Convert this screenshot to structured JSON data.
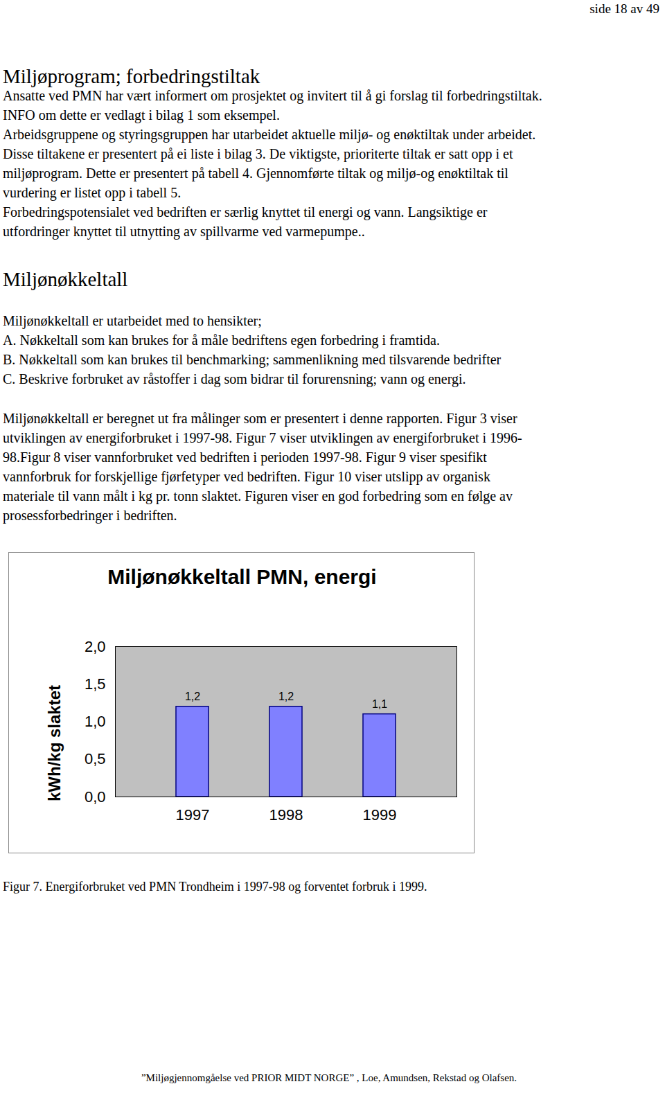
{
  "header": {
    "page": "side 18 av 49"
  },
  "sections": [
    {
      "heading": "Miljøprogram; forbedringstiltak",
      "paragraphs": [
        [
          "Ansatte ved PMN har vært informert om prosjektet og invitert til å gi forslag til forbedringstiltak.",
          "INFO om dette er vedlagt i bilag 1 som eksempel.",
          "Arbeidsgruppene og styringsgruppen har utarbeidet aktuelle miljø- og enøktiltak under arbeidet.",
          "Disse tiltakene er presentert på ei liste i bilag 3. De viktigste, prioriterte tiltak er satt opp i et",
          "miljøprogram. Dette er presentert på tabell 4. Gjennomførte tiltak og miljø-og enøktiltak til",
          "vurdering er listet opp i tabell 5.",
          "Forbedringspotensialet ved bedriften er særlig knyttet til energi og vann. Langsiktige er",
          "utfordringer knyttet til utnytting av spillvarme ved varmepumpe.."
        ]
      ]
    },
    {
      "heading": "Miljønøkkeltall",
      "paragraphs": [
        [
          "Miljønøkkeltall er utarbeidet med to hensikter;",
          "A.  Nøkkeltall som kan brukes for å måle bedriftens egen forbedring i framtida.",
          "B.  Nøkkeltall som kan brukes til benchmarking; sammenlikning med tilsvarende bedrifter",
          "C.  Beskrive forbruket av råstoffer i dag som bidrar til forurensning; vann og energi."
        ],
        [
          "Miljønøkkeltall er beregnet ut fra målinger som er presentert i denne rapporten. Figur 3 viser",
          "utviklingen av energiforbruket i 1997-98. Figur 7 viser utviklingen av energiforbruket i 1996-",
          "98.Figur 8 viser vannforbruket ved bedriften i perioden 1997-98. Figur 9 viser spesifikt",
          "vannforbruk for forskjellige fjørfetyper ved bedriften. Figur 10 viser utslipp av organisk",
          "materiale til vann målt i kg pr. tonn slaktet. Figuren viser en god forbedring som en følge av",
          "prosessforbedringer i bedriften."
        ]
      ]
    }
  ],
  "chart_data": {
    "type": "bar",
    "title": "Miljønøkkeltall PMN, energi",
    "y_label": "kWh/kg slaktet",
    "categories": [
      "1997",
      "1998",
      "1999"
    ],
    "values": [
      1.2,
      1.2,
      1.1
    ],
    "value_labels": [
      "1,2",
      "1,2",
      "1,1"
    ],
    "data_labels": true,
    "color": "#8080ff",
    "ylim": [
      0,
      2
    ],
    "yticks": [
      {
        "value": 0,
        "label": "0,0"
      },
      {
        "value": 0.5,
        "label": "0,5"
      },
      {
        "value": 1,
        "label": "1,0"
      },
      {
        "value": 1.5,
        "label": "1,5"
      },
      {
        "value": 2,
        "label": "2,0"
      }
    ],
    "grid": false
  },
  "caption": "Figur 7. Energiforbruket ved PMN Trondheim i 1997-98 og forventet forbruk i 1999.",
  "footer": "”Miljøgjennomgåelse ved PRIOR MIDT NORGE” , Loe, Amundsen, Rekstad og Olafsen."
}
